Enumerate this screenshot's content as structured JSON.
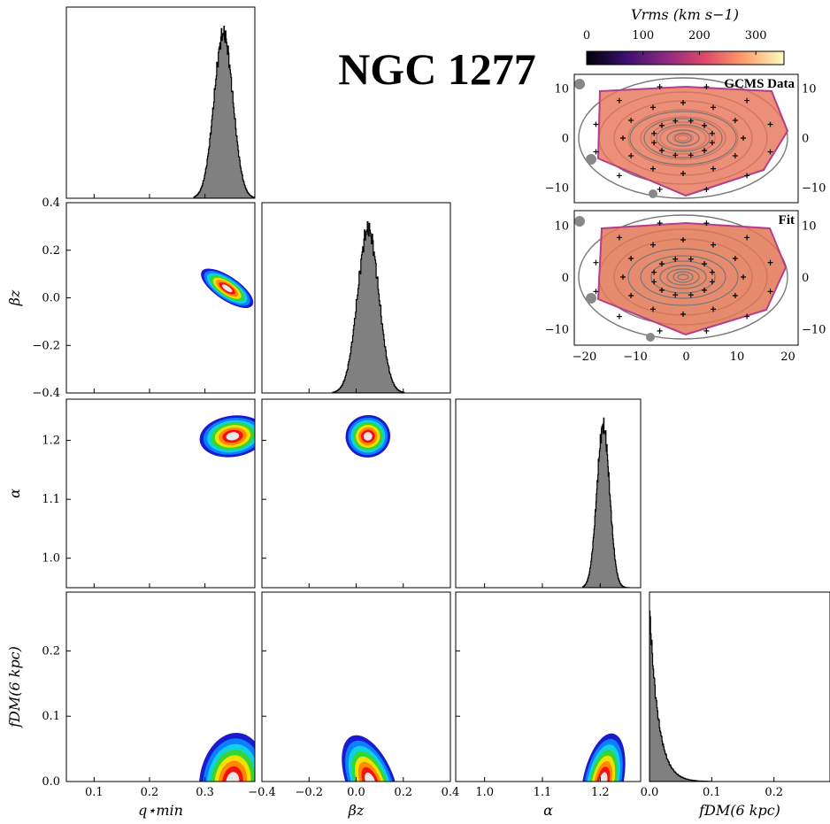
{
  "title": "NGC 1277",
  "chart_data": [
    {
      "type": "corner",
      "parameters": [
        {
          "key": "qmin",
          "label": "q⋆min",
          "range": [
            0.05,
            0.39
          ],
          "ticks": [
            0.1,
            0.2,
            0.3
          ],
          "tick_labels": [
            "0.1",
            "0.2",
            "0.3"
          ]
        },
        {
          "key": "beta",
          "label": "βz",
          "range": [
            -0.4,
            0.4
          ],
          "ticks": [
            -0.4,
            -0.2,
            0.0,
            0.2,
            0.4
          ],
          "tick_labels": [
            "−0.4",
            "−0.2",
            "0.0",
            "0.2",
            "0.4"
          ]
        },
        {
          "key": "alpha",
          "label": "α",
          "range": [
            0.95,
            1.27
          ],
          "ticks": [
            1.0,
            1.1,
            1.2
          ],
          "tick_labels": [
            "1.0",
            "1.1",
            "1.2"
          ]
        },
        {
          "key": "fdm",
          "label": "fDM(6 kpc)",
          "range": [
            0.0,
            0.29
          ],
          "ticks": [
            0.0,
            0.1,
            0.2
          ],
          "tick_labels": [
            "0.0",
            "0.1",
            "0.2"
          ]
        }
      ],
      "marginals": [
        {
          "param": "qmin",
          "mean": 0.333,
          "sd": 0.017,
          "lower_cut": 0.28,
          "upper_cut": 0.39
        },
        {
          "param": "beta",
          "mean": 0.05,
          "sd": 0.045,
          "lower_cut": -0.1,
          "upper_cut": 0.2
        },
        {
          "param": "alpha",
          "mean": 1.205,
          "sd": 0.011,
          "lower_cut": 1.17,
          "upper_cut": 1.25
        },
        {
          "param": "fdm",
          "peak": 0.0,
          "decay": 0.014,
          "lower_cut": 0.0,
          "upper_cut": 0.1
        }
      ],
      "joint": [
        {
          "x": "qmin",
          "y": "beta",
          "cx": 0.34,
          "cy": 0.04,
          "rx": 0.055,
          "ry": 0.05,
          "corr": -0.85
        },
        {
          "x": "qmin",
          "y": "alpha",
          "cx": 0.35,
          "cy": 1.207,
          "rx": 0.06,
          "ry": 0.035,
          "corr": 0.2
        },
        {
          "x": "beta",
          "y": "alpha",
          "cx": 0.05,
          "cy": 1.207,
          "rx": 0.095,
          "ry": 0.036,
          "corr": 0.2
        },
        {
          "x": "qmin",
          "y": "fdm",
          "cx": 0.35,
          "cy": 0.0,
          "rx": 0.06,
          "ry": 0.075,
          "corr": -0.2
        },
        {
          "x": "beta",
          "y": "fdm",
          "cx": 0.06,
          "cy": 0.0,
          "rx": 0.1,
          "ry": 0.075,
          "corr": 0.55
        },
        {
          "x": "alpha",
          "y": "fdm",
          "cx": 1.205,
          "cy": 0.0,
          "rx": 0.035,
          "ry": 0.075,
          "corr": -0.3
        }
      ],
      "contour_colors": [
        "#1a1ad0",
        "#0a7fff",
        "#11d0e0",
        "#33d633",
        "#f3e000",
        "#ff8a00",
        "#f21111",
        "#e8e8e8"
      ]
    },
    {
      "type": "heatmap",
      "panels": [
        "GCMS Data",
        "Fit"
      ],
      "colorbar": {
        "label": "Vrms (km s−1)",
        "range": [
          0,
          350
        ],
        "ticks": [
          0,
          100,
          200,
          300
        ],
        "colors": [
          "#000004",
          "#3b0f70",
          "#8c2981",
          "#de4968",
          "#fe9f6d",
          "#fcfdbf"
        ]
      },
      "x_ticks": [
        -20,
        -10,
        0,
        10,
        20
      ],
      "y_ticks": [
        -10,
        0,
        10
      ],
      "xlim": [
        -22,
        22
      ],
      "ylim": [
        -13,
        13
      ]
    }
  ]
}
